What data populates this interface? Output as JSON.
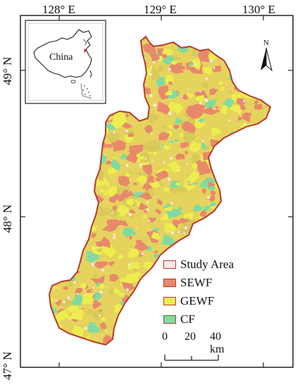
{
  "colors": {
    "frame": "#222222",
    "boundary": "#b23b2e",
    "study_area_fill": "#fbe8ea",
    "sewf": "#e8896b",
    "gewf": "#eded4f",
    "cf": "#7fdba1",
    "mix": "#d7c95a"
  },
  "axes": {
    "top_labels": [
      "128° E",
      "129° E",
      "130° E"
    ],
    "left_labels": [
      "49° N",
      "48° N",
      "47° N"
    ]
  },
  "inset": {
    "country_label": "China"
  },
  "north_arrow": {
    "label": "N"
  },
  "legend": {
    "items": [
      {
        "label": "Study Area",
        "color_key": "study_area_fill"
      },
      {
        "label": "SEWF",
        "color_key": "sewf"
      },
      {
        "label": "GEWF",
        "color_key": "gewf"
      },
      {
        "label": "CF",
        "color_key": "cf"
      }
    ]
  },
  "scale_bar": {
    "labels": [
      "0",
      "20",
      "40 km"
    ]
  }
}
